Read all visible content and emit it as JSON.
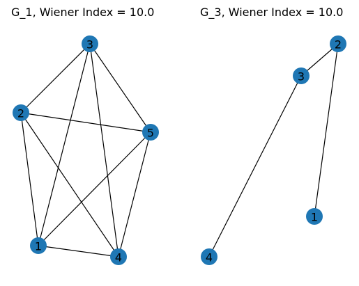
{
  "colors": {
    "node_fill": "#1f77b4",
    "edge": "#000000",
    "background": "#ffffff"
  },
  "graphs": [
    {
      "title": "G_1, Wiener Index = 10.0",
      "nodes": [
        {
          "id": "1",
          "label": "1"
        },
        {
          "id": "2",
          "label": "2"
        },
        {
          "id": "3",
          "label": "3"
        },
        {
          "id": "4",
          "label": "4"
        },
        {
          "id": "5",
          "label": "5"
        }
      ],
      "edges": [
        [
          "1",
          "2"
        ],
        [
          "1",
          "3"
        ],
        [
          "1",
          "4"
        ],
        [
          "1",
          "5"
        ],
        [
          "2",
          "3"
        ],
        [
          "2",
          "4"
        ],
        [
          "2",
          "5"
        ],
        [
          "3",
          "4"
        ],
        [
          "3",
          "5"
        ],
        [
          "4",
          "5"
        ]
      ]
    },
    {
      "title": "G_3, Wiener Index = 10.0",
      "nodes": [
        {
          "id": "1",
          "label": "1"
        },
        {
          "id": "2",
          "label": "2"
        },
        {
          "id": "3",
          "label": "3"
        },
        {
          "id": "4",
          "label": "4"
        }
      ],
      "edges": [
        [
          "2",
          "3"
        ],
        [
          "2",
          "1"
        ],
        [
          "3",
          "4"
        ]
      ]
    }
  ]
}
